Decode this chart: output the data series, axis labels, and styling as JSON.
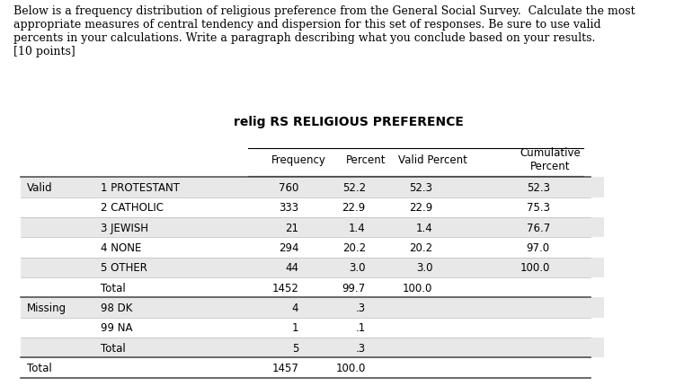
{
  "title": "relig RS RELIGIOUS PREFERENCE",
  "background_color": "#ffffff",
  "header_text": "Below is a frequency distribution of religious preference from the General Social Survey.  Calculate the most appropriate measures of central tendency and dispersion for this set of responses. Be sure to use valid percents in your calculations. Write a paragraph describing what you conclude based on your results.\n[10 points]",
  "col_headers": [
    "",
    "",
    "Frequency",
    "Percent",
    "Valid Percent",
    "Cumulative\nPercent"
  ],
  "rows": [
    [
      "Valid",
      "1 PROTESTANT",
      "760",
      "52.2",
      "52.3",
      "52.3"
    ],
    [
      "",
      "2 CATHOLIC",
      "333",
      "22.9",
      "22.9",
      "75.3"
    ],
    [
      "",
      "3 JEWISH",
      "21",
      "1.4",
      "1.4",
      "76.7"
    ],
    [
      "",
      "4 NONE",
      "294",
      "20.2",
      "20.2",
      "97.0"
    ],
    [
      "",
      "5 OTHER",
      "44",
      "3.0",
      "3.0",
      "100.0"
    ],
    [
      "",
      "Total",
      "1452",
      "99.7",
      "100.0",
      ""
    ],
    [
      "Missing",
      "98 DK",
      "4",
      ".3",
      "",
      ""
    ],
    [
      "",
      "99 NA",
      "1",
      ".1",
      "",
      ""
    ],
    [
      "",
      "Total",
      "5",
      ".3",
      "",
      ""
    ],
    [
      "Total",
      "",
      "1457",
      "100.0",
      "",
      ""
    ]
  ],
  "shaded_rows": [
    0,
    2,
    4,
    6,
    8
  ],
  "shade_color": "#e8e8e8",
  "separator_rows": [
    5,
    8
  ],
  "font_size_header": 8.5,
  "font_size_title": 10,
  "font_size_table": 8.5
}
